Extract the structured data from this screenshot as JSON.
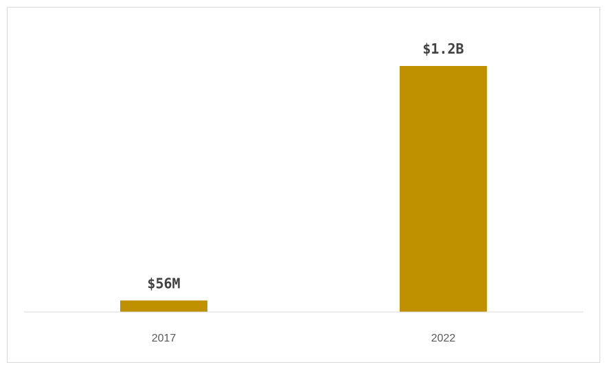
{
  "chart_data": {
    "type": "bar",
    "categories": [
      "2017",
      "2022"
    ],
    "values": [
      56,
      1200
    ],
    "value_unit": "M USD",
    "data_labels": [
      "$56M",
      "$1.2B"
    ],
    "title": "",
    "xlabel": "",
    "ylabel": "",
    "ylim": [
      0,
      1200
    ],
    "grid": false,
    "legend": "none",
    "bar_color": "#bf9000",
    "axis_color": "#d9d9d9"
  }
}
